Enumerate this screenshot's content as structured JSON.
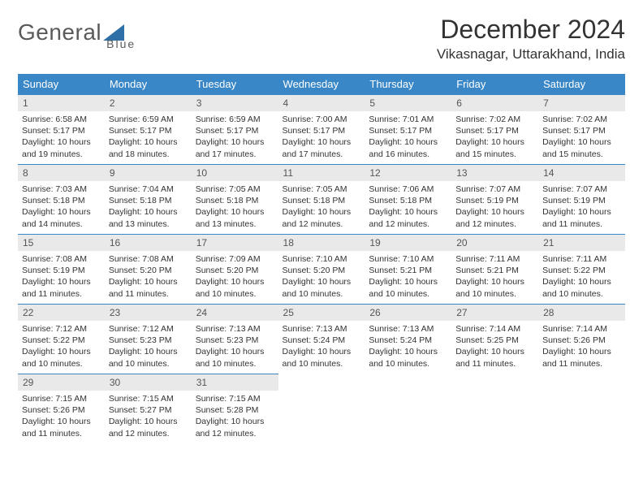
{
  "logo": {
    "text_left": "General",
    "text_right": "Blue",
    "triangle_color": "#2f6fa8",
    "text_color": "#5a5a5a"
  },
  "header": {
    "month_title": "December 2024",
    "location": "Vikasnagar, Uttarakhand, India"
  },
  "colors": {
    "header_bg": "#3a87c7",
    "header_fg": "#ffffff",
    "daynum_bg": "#e9e9e9",
    "daynum_fg": "#555555",
    "daynum_border": "#3a87c7",
    "body_text": "#333333",
    "page_bg": "#ffffff"
  },
  "weekdays": [
    "Sunday",
    "Monday",
    "Tuesday",
    "Wednesday",
    "Thursday",
    "Friday",
    "Saturday"
  ],
  "weeks": [
    [
      {
        "n": "1",
        "sr": "Sunrise: 6:58 AM",
        "ss": "Sunset: 5:17 PM",
        "dl": "Daylight: 10 hours and 19 minutes."
      },
      {
        "n": "2",
        "sr": "Sunrise: 6:59 AM",
        "ss": "Sunset: 5:17 PM",
        "dl": "Daylight: 10 hours and 18 minutes."
      },
      {
        "n": "3",
        "sr": "Sunrise: 6:59 AM",
        "ss": "Sunset: 5:17 PM",
        "dl": "Daylight: 10 hours and 17 minutes."
      },
      {
        "n": "4",
        "sr": "Sunrise: 7:00 AM",
        "ss": "Sunset: 5:17 PM",
        "dl": "Daylight: 10 hours and 17 minutes."
      },
      {
        "n": "5",
        "sr": "Sunrise: 7:01 AM",
        "ss": "Sunset: 5:17 PM",
        "dl": "Daylight: 10 hours and 16 minutes."
      },
      {
        "n": "6",
        "sr": "Sunrise: 7:02 AM",
        "ss": "Sunset: 5:17 PM",
        "dl": "Daylight: 10 hours and 15 minutes."
      },
      {
        "n": "7",
        "sr": "Sunrise: 7:02 AM",
        "ss": "Sunset: 5:17 PM",
        "dl": "Daylight: 10 hours and 15 minutes."
      }
    ],
    [
      {
        "n": "8",
        "sr": "Sunrise: 7:03 AM",
        "ss": "Sunset: 5:18 PM",
        "dl": "Daylight: 10 hours and 14 minutes."
      },
      {
        "n": "9",
        "sr": "Sunrise: 7:04 AM",
        "ss": "Sunset: 5:18 PM",
        "dl": "Daylight: 10 hours and 13 minutes."
      },
      {
        "n": "10",
        "sr": "Sunrise: 7:05 AM",
        "ss": "Sunset: 5:18 PM",
        "dl": "Daylight: 10 hours and 13 minutes."
      },
      {
        "n": "11",
        "sr": "Sunrise: 7:05 AM",
        "ss": "Sunset: 5:18 PM",
        "dl": "Daylight: 10 hours and 12 minutes."
      },
      {
        "n": "12",
        "sr": "Sunrise: 7:06 AM",
        "ss": "Sunset: 5:18 PM",
        "dl": "Daylight: 10 hours and 12 minutes."
      },
      {
        "n": "13",
        "sr": "Sunrise: 7:07 AM",
        "ss": "Sunset: 5:19 PM",
        "dl": "Daylight: 10 hours and 12 minutes."
      },
      {
        "n": "14",
        "sr": "Sunrise: 7:07 AM",
        "ss": "Sunset: 5:19 PM",
        "dl": "Daylight: 10 hours and 11 minutes."
      }
    ],
    [
      {
        "n": "15",
        "sr": "Sunrise: 7:08 AM",
        "ss": "Sunset: 5:19 PM",
        "dl": "Daylight: 10 hours and 11 minutes."
      },
      {
        "n": "16",
        "sr": "Sunrise: 7:08 AM",
        "ss": "Sunset: 5:20 PM",
        "dl": "Daylight: 10 hours and 11 minutes."
      },
      {
        "n": "17",
        "sr": "Sunrise: 7:09 AM",
        "ss": "Sunset: 5:20 PM",
        "dl": "Daylight: 10 hours and 10 minutes."
      },
      {
        "n": "18",
        "sr": "Sunrise: 7:10 AM",
        "ss": "Sunset: 5:20 PM",
        "dl": "Daylight: 10 hours and 10 minutes."
      },
      {
        "n": "19",
        "sr": "Sunrise: 7:10 AM",
        "ss": "Sunset: 5:21 PM",
        "dl": "Daylight: 10 hours and 10 minutes."
      },
      {
        "n": "20",
        "sr": "Sunrise: 7:11 AM",
        "ss": "Sunset: 5:21 PM",
        "dl": "Daylight: 10 hours and 10 minutes."
      },
      {
        "n": "21",
        "sr": "Sunrise: 7:11 AM",
        "ss": "Sunset: 5:22 PM",
        "dl": "Daylight: 10 hours and 10 minutes."
      }
    ],
    [
      {
        "n": "22",
        "sr": "Sunrise: 7:12 AM",
        "ss": "Sunset: 5:22 PM",
        "dl": "Daylight: 10 hours and 10 minutes."
      },
      {
        "n": "23",
        "sr": "Sunrise: 7:12 AM",
        "ss": "Sunset: 5:23 PM",
        "dl": "Daylight: 10 hours and 10 minutes."
      },
      {
        "n": "24",
        "sr": "Sunrise: 7:13 AM",
        "ss": "Sunset: 5:23 PM",
        "dl": "Daylight: 10 hours and 10 minutes."
      },
      {
        "n": "25",
        "sr": "Sunrise: 7:13 AM",
        "ss": "Sunset: 5:24 PM",
        "dl": "Daylight: 10 hours and 10 minutes."
      },
      {
        "n": "26",
        "sr": "Sunrise: 7:13 AM",
        "ss": "Sunset: 5:24 PM",
        "dl": "Daylight: 10 hours and 10 minutes."
      },
      {
        "n": "27",
        "sr": "Sunrise: 7:14 AM",
        "ss": "Sunset: 5:25 PM",
        "dl": "Daylight: 10 hours and 11 minutes."
      },
      {
        "n": "28",
        "sr": "Sunrise: 7:14 AM",
        "ss": "Sunset: 5:26 PM",
        "dl": "Daylight: 10 hours and 11 minutes."
      }
    ],
    [
      {
        "n": "29",
        "sr": "Sunrise: 7:15 AM",
        "ss": "Sunset: 5:26 PM",
        "dl": "Daylight: 10 hours and 11 minutes."
      },
      {
        "n": "30",
        "sr": "Sunrise: 7:15 AM",
        "ss": "Sunset: 5:27 PM",
        "dl": "Daylight: 10 hours and 12 minutes."
      },
      {
        "n": "31",
        "sr": "Sunrise: 7:15 AM",
        "ss": "Sunset: 5:28 PM",
        "dl": "Daylight: 10 hours and 12 minutes."
      },
      null,
      null,
      null,
      null
    ]
  ]
}
